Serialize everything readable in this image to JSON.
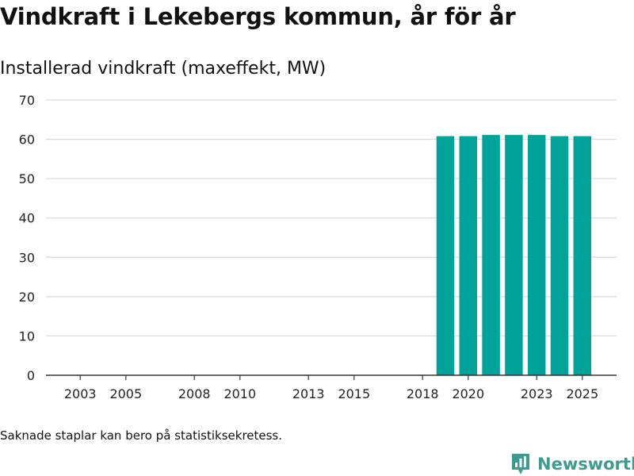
{
  "header": {
    "title": "Vindkraft i Lekebergs kommun, år för år",
    "subtitle": "Installerad vindkraft (maxeffekt, MW)"
  },
  "footnote": "Saknade staplar kan bero på statistiksekretess.",
  "brand": {
    "name": "Newsworthy",
    "icon": "newsworthy-logo-icon",
    "color": "#3d9c8f"
  },
  "chart_data": {
    "type": "bar",
    "title": "Installerad vindkraft (maxeffekt, MW)",
    "xlabel": "",
    "ylabel": "",
    "x_ticks": [
      2003,
      2005,
      2008,
      2010,
      2013,
      2015,
      2018,
      2020,
      2023,
      2025
    ],
    "y_ticks": [
      0,
      10,
      20,
      30,
      40,
      50,
      60,
      70
    ],
    "xlim": [
      2001.5,
      2026.5
    ],
    "ylim": [
      0,
      70
    ],
    "grid": true,
    "bar_color": "#00a39a",
    "categories": [
      2019,
      2020,
      2021,
      2022,
      2023,
      2024,
      2025
    ],
    "values": [
      60.8,
      60.8,
      61.1,
      61.1,
      61.1,
      60.8,
      60.8
    ]
  }
}
